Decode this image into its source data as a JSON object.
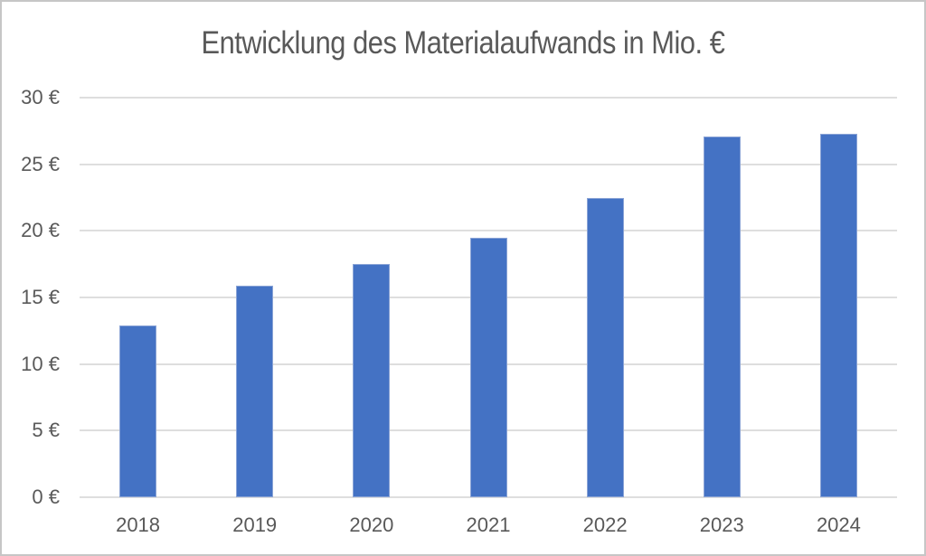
{
  "chart_data": {
    "type": "bar",
    "title": "Entwicklung des Materialaufwands in Mio. €",
    "categories": [
      "2018",
      "2019",
      "2020",
      "2021",
      "2022",
      "2023",
      "2024"
    ],
    "values": [
      12.9,
      15.9,
      17.5,
      19.5,
      22.5,
      27.1,
      27.3
    ],
    "xlabel": "",
    "ylabel": "",
    "ylim": [
      0,
      30
    ],
    "y_ticks": [
      0,
      5,
      10,
      15,
      20,
      25,
      30
    ],
    "y_tick_suffix": " €",
    "grid": true,
    "legend": false,
    "bar_color": "#4472C4",
    "bar_edge_color": "#8BA4D6",
    "gridline_color": "#DEDEDE",
    "text_color": "#595959",
    "background_color": "#FFFFFF",
    "frame_border_color": "#C6C6C6"
  }
}
